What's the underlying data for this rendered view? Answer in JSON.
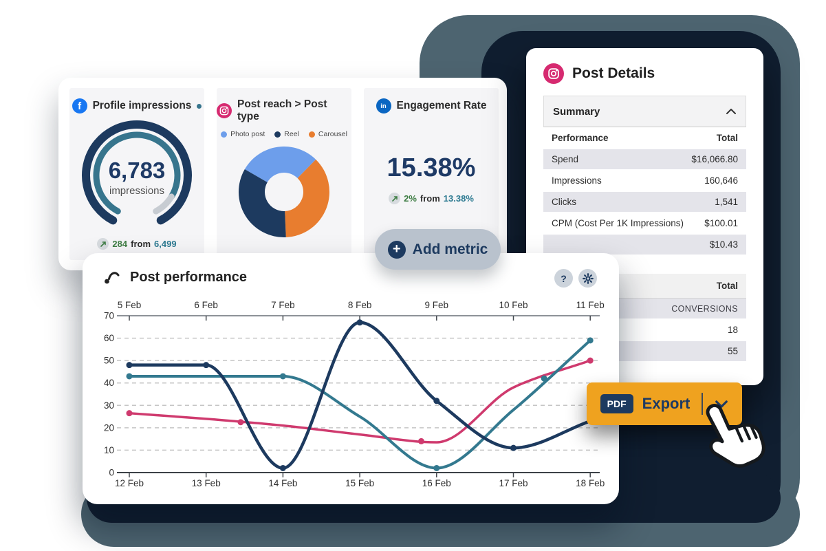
{
  "colors": {
    "navy": "#1d3a5f",
    "teal_line": "#33798f",
    "pink_line": "#cf3a6e",
    "light_blue": "#6d9eeb",
    "orange_slice": "#e87d2f",
    "green_positive": "#3e7d44",
    "teal_previous": "#2e7b92",
    "export_orange": "#efa21f",
    "add_metric_gray": "#b9c2cd",
    "bg_navy": "#101e30",
    "bg_slate": "#4d6470",
    "facebook_blue": "#1877f2",
    "linkedin_blue": "#0a66c2",
    "instagram_pink": "#d62a70"
  },
  "metrics": {
    "profile": {
      "icon": "facebook-icon",
      "title": "Profile impressions",
      "value_label": "6,783",
      "unit": "impressions",
      "delta": {
        "change": "284",
        "from_word": "from",
        "previous": "6,499"
      }
    },
    "post_reach": {
      "icon": "instagram-icon",
      "title": "Post reach > Post type",
      "legend": [
        {
          "label": "Photo post",
          "color": "#6d9eeb"
        },
        {
          "label": "Reel",
          "color": "#1d3a5f"
        },
        {
          "label": "Carousel",
          "color": "#e87d2f"
        }
      ]
    },
    "engagement": {
      "icon": "linkedin-icon",
      "title": "Engagement Rate",
      "value": "15.38%",
      "delta": {
        "change": "2%",
        "from_word": "from",
        "previous": "13.38%"
      }
    }
  },
  "add_metric": {
    "label": "Add metric"
  },
  "post_details": {
    "title": "Post Details",
    "summary_label": "Summary",
    "table1": {
      "header": [
        "Performance",
        "Total"
      ],
      "rows": [
        [
          "Spend",
          "$16,066.80"
        ],
        [
          "Impressions",
          "160,646"
        ],
        [
          "Clicks",
          "1,541"
        ],
        [
          "CPM (Cost Per 1K Impressions)",
          "$100.01"
        ],
        [
          "",
          "$10.43"
        ]
      ]
    },
    "table2": {
      "header_right": "Total",
      "rows": [
        [
          "",
          "CONVERSIONS"
        ],
        [
          "",
          "18"
        ],
        [
          "",
          "55"
        ]
      ]
    }
  },
  "post_performance": {
    "title": "Post performance"
  },
  "export": {
    "badge": "PDF",
    "label": "Export"
  },
  "chart_data": [
    {
      "id": "post_performance",
      "type": "line",
      "title": "Post performance",
      "x_axis_top": [
        "5 Feb",
        "6 Feb",
        "7 Feb",
        "8 Feb",
        "9 Feb",
        "10 Feb",
        "11 Feb"
      ],
      "x_axis_bottom": [
        "12 Feb",
        "13 Feb",
        "14 Feb",
        "15 Feb",
        "16 Feb",
        "17 Feb",
        "18 Feb"
      ],
      "y_min": 0,
      "y_max": 70,
      "y_ticks": [
        0,
        10,
        20,
        30,
        40,
        50,
        60,
        70
      ],
      "grid": "dashed-horizontal",
      "series": [
        {
          "name": "pink",
          "color": "#cf3a6e",
          "width": 3.5,
          "values": [
            26.5,
            24,
            21,
            17,
            13.5,
            38,
            50
          ],
          "dots": [
            [
              0,
              26.5
            ],
            [
              1.45,
              22.5
            ],
            [
              3.8,
              14
            ],
            [
              6,
              50
            ]
          ]
        },
        {
          "name": "teal",
          "color": "#33798f",
          "width": 4,
          "values": [
            43,
            43,
            43,
            25,
            2,
            28,
            59
          ],
          "dots": [
            [
              0,
              43
            ],
            [
              2,
              43
            ],
            [
              4,
              2
            ],
            [
              5.4,
              42
            ],
            [
              6,
              59
            ]
          ]
        },
        {
          "name": "navy",
          "color": "#1d3a5f",
          "width": 4.5,
          "values": [
            48,
            48,
            2,
            67,
            32,
            11,
            23
          ],
          "dots": [
            [
              0,
              48
            ],
            [
              1,
              48
            ],
            [
              2,
              2
            ],
            [
              3,
              67
            ],
            [
              4,
              32
            ],
            [
              5,
              11
            ]
          ]
        }
      ]
    },
    {
      "id": "post_type_donut",
      "type": "donut",
      "start_deg": -60,
      "slices": [
        {
          "label": "Photo post",
          "color": "#6d9eeb",
          "percent": 29
        },
        {
          "label": "Carousel",
          "color": "#e87d2f",
          "percent": 37
        },
        {
          "label": "Reel",
          "color": "#1d3a5f",
          "percent": 34
        }
      ]
    },
    {
      "id": "impressions_gauge",
      "type": "gauge",
      "value_label": "6,783",
      "unit": "impressions",
      "progress": 0.9,
      "track_color": "#1d3a5f",
      "fill_color": "#37758d",
      "remainder_color": "#c7ccd2"
    }
  ]
}
